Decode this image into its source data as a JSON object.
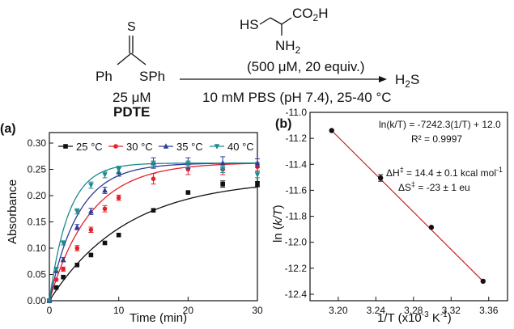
{
  "scheme": {
    "reagent_structure_line1": "HS",
    "reagent_co2h": "CO2H",
    "reagent_nh2": "NH2",
    "reagent_amount": "(500 μM, 20 equiv.)",
    "conditions": "10 mM PBS (pH 7.4), 25-40 °C",
    "product": "H2S",
    "substrate_s": "S",
    "substrate_ph": "Ph",
    "substrate_sph": "SPh",
    "substrate_conc": "25 μM",
    "substrate_name": "PDTE"
  },
  "chart_data": [
    {
      "type": "scatter",
      "panel_label": "(a)",
      "xlabel": "Time (min)",
      "ylabel": "Absorbance",
      "xlim": [
        0,
        30
      ],
      "ylim": [
        0,
        0.32
      ],
      "x_ticks": [
        "0",
        "10",
        "20",
        "30"
      ],
      "y_ticks": [
        "0.00",
        "0.05",
        "0.10",
        "0.15",
        "0.20",
        "0.25",
        "0.30"
      ],
      "legend_position": "top",
      "grid": false,
      "series": [
        {
          "name": "25 °C",
          "color": "#111111",
          "marker": "square",
          "points": [
            [
              0,
              0.0
            ],
            [
              1,
              0.025
            ],
            [
              2,
              0.045
            ],
            [
              4,
              0.068
            ],
            [
              6,
              0.087
            ],
            [
              8,
              0.11
            ],
            [
              10,
              0.125
            ],
            [
              15,
              0.172
            ],
            [
              20,
              0.206
            ],
            [
              25,
              0.222
            ],
            [
              30,
              0.222
            ]
          ],
          "errors": [
            0,
            0,
            0,
            0,
            0,
            0,
            0,
            0,
            0,
            0.006,
            0.005
          ],
          "fit": {
            "a": 0.232,
            "k": 0.09
          }
        },
        {
          "name": "30 °C",
          "color": "#e8202a",
          "marker": "circle",
          "points": [
            [
              0,
              0.0
            ],
            [
              1,
              0.04
            ],
            [
              2,
              0.06
            ],
            [
              4,
              0.1
            ],
            [
              6,
              0.135
            ],
            [
              8,
              0.175
            ],
            [
              10,
              0.196
            ],
            [
              15,
              0.232
            ],
            [
              20,
              0.25
            ],
            [
              25,
              0.25
            ],
            [
              30,
              0.255
            ]
          ],
          "errors": [
            0,
            0,
            0.004,
            0.005,
            0.005,
            0.006,
            0.005,
            0.01,
            0.01,
            0.01,
            0.008
          ],
          "fit": {
            "a": 0.263,
            "k": 0.17
          }
        },
        {
          "name": "35 °C",
          "color": "#2d3c9a",
          "marker": "triangle-up",
          "points": [
            [
              0,
              0.0
            ],
            [
              1,
              0.057
            ],
            [
              2,
              0.078
            ],
            [
              4,
              0.14
            ],
            [
              6,
              0.17
            ],
            [
              8,
              0.21
            ],
            [
              10,
              0.245
            ],
            [
              15,
              0.262
            ],
            [
              20,
              0.262
            ],
            [
              25,
              0.262
            ],
            [
              30,
              0.262
            ]
          ],
          "errors": [
            0,
            0,
            0.004,
            0.005,
            0.006,
            0.006,
            0.008,
            0.01,
            0.01,
            0.012,
            0.008
          ],
          "fit": {
            "a": 0.262,
            "k": 0.24
          }
        },
        {
          "name": "40 °C",
          "color": "#1d8a8c",
          "marker": "triangle-down",
          "points": [
            [
              0,
              0.0
            ],
            [
              1,
              0.06
            ],
            [
              2,
              0.11
            ],
            [
              4,
              0.17
            ],
            [
              6,
              0.22
            ],
            [
              8,
              0.24
            ],
            [
              10,
              0.25
            ],
            [
              15,
              0.26
            ],
            [
              20,
              0.26
            ],
            [
              25,
              0.25
            ],
            [
              30,
              0.24
            ]
          ],
          "errors": [
            0,
            0,
            0.004,
            0.005,
            0.006,
            0.006,
            0.006,
            0.006,
            0.006,
            0.006,
            0.006
          ],
          "fit": {
            "a": 0.262,
            "k": 0.36
          }
        }
      ]
    },
    {
      "type": "scatter",
      "panel_label": "(b)",
      "xlabel": "1/T (x10-3 K-1)",
      "ylabel": "ln (k/T)",
      "xlim": [
        3.17,
        3.38
      ],
      "ylim": [
        -12.45,
        -11.0
      ],
      "x_ticks": [
        "3.20",
        "3.24",
        "3.28",
        "3.32",
        "3.36"
      ],
      "y_ticks": [
        "-11.0",
        "-11.2",
        "-11.4",
        "-11.6",
        "-11.8",
        "-12.0",
        "-12.2",
        "-12.4"
      ],
      "grid": false,
      "points": [
        [
          3.193,
          -11.14
        ],
        [
          3.245,
          -11.505
        ],
        [
          3.299,
          -11.885
        ],
        [
          3.354,
          -12.3
        ]
      ],
      "errors": [
        0,
        0.025,
        0,
        0
      ],
      "fit_line": {
        "x": [
          3.193,
          3.354
        ],
        "y": [
          -11.14,
          -12.3
        ],
        "color": "#c0202a"
      },
      "annotations": {
        "equation": "ln(k/T) = -7242.3(1/T) + 12.0",
        "r_squared": "R² = 0.9997",
        "delta_h": "ΔH‡ = 14.4 ± 0.1 kcal mol-1",
        "delta_s": "ΔS‡ = -23 ± 1 eu"
      }
    }
  ]
}
